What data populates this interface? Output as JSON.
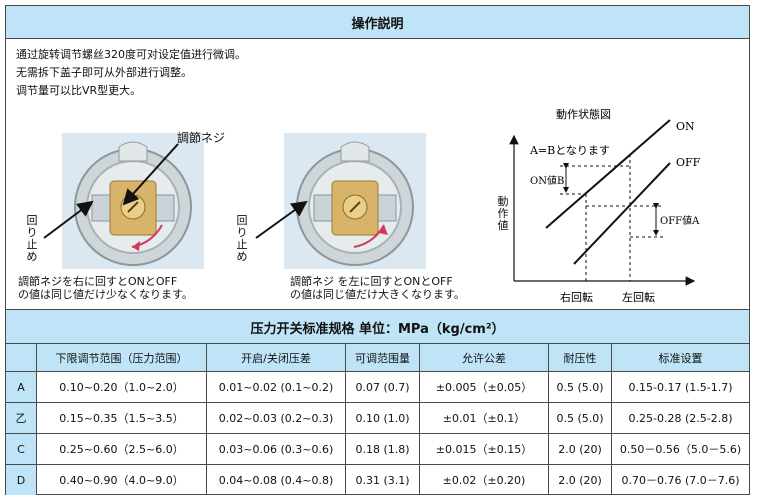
{
  "section1": {
    "title": "操作説明",
    "description": [
      "通过旋转调节螺丝320度可对设定值进行微调。",
      "无需拆下盖子即可从外部进行调整。",
      "调节量可以比VR型更大。"
    ],
    "adjust_screw_label": "調節ネジ",
    "stop_label": "回り止め",
    "caption_right": [
      "調節ネジを右に回すとONとOFF",
      "の値は同じ値だけ少なくなります。"
    ],
    "caption_left": [
      "調節ネジ を左に回すとONとOFF",
      "の値は同じ値だけ大きくなります。"
    ]
  },
  "diagram": {
    "title": "動作状態図",
    "equal_note": "A=Bとなります",
    "on_label": "ON",
    "off_label": "OFF",
    "on_value_label": "ON値B",
    "off_value_label": "OFF値A",
    "y_axis_label": "動作値",
    "right_turn_label": "右回転",
    "left_turn_label": "左回転"
  },
  "section2": {
    "title": "压力开关标准规格 单位：MPa（kg/cm²）",
    "columns": [
      "",
      "下限调节范围（压力范围）",
      "开启/关闭压差",
      "可调范围量",
      "允许公差",
      "耐压性",
      "标准设置"
    ],
    "rows": [
      [
        "A",
        "0.10~0.20（1.0~2.0）",
        "0.01~0.02 (0.1~0.2)",
        "0.07 (0.7)",
        "±0.005（±0.05）",
        "0.5 (5.0)",
        "0.15-0.17 (1.5-1.7)"
      ],
      [
        "乙",
        "0.15~0.35（1.5~3.5）",
        "0.02~0.03 (0.2~0.3)",
        "0.10 (1.0)",
        "±0.01（±0.1）",
        "0.5 (5.0)",
        "0.25-0.28 (2.5-2.8)"
      ],
      [
        "C",
        "0.25~0.60（2.5~6.0）",
        "0.03~0.06 (0.3~0.6)",
        "0.18 (1.8)",
        "±0.015（±0.15）",
        "2.0 (20)",
        "0.50－0.56（5.0－5.6)"
      ],
      [
        "D",
        "0.40~0.90（4.0~9.0）",
        "0.04~0.08 (0.4~0.8)",
        "0.31 (3.1)",
        "±0.02（±0.20)",
        "2.0 (20)",
        "0.70－0.76 (7.0－7.6)"
      ]
    ]
  }
}
